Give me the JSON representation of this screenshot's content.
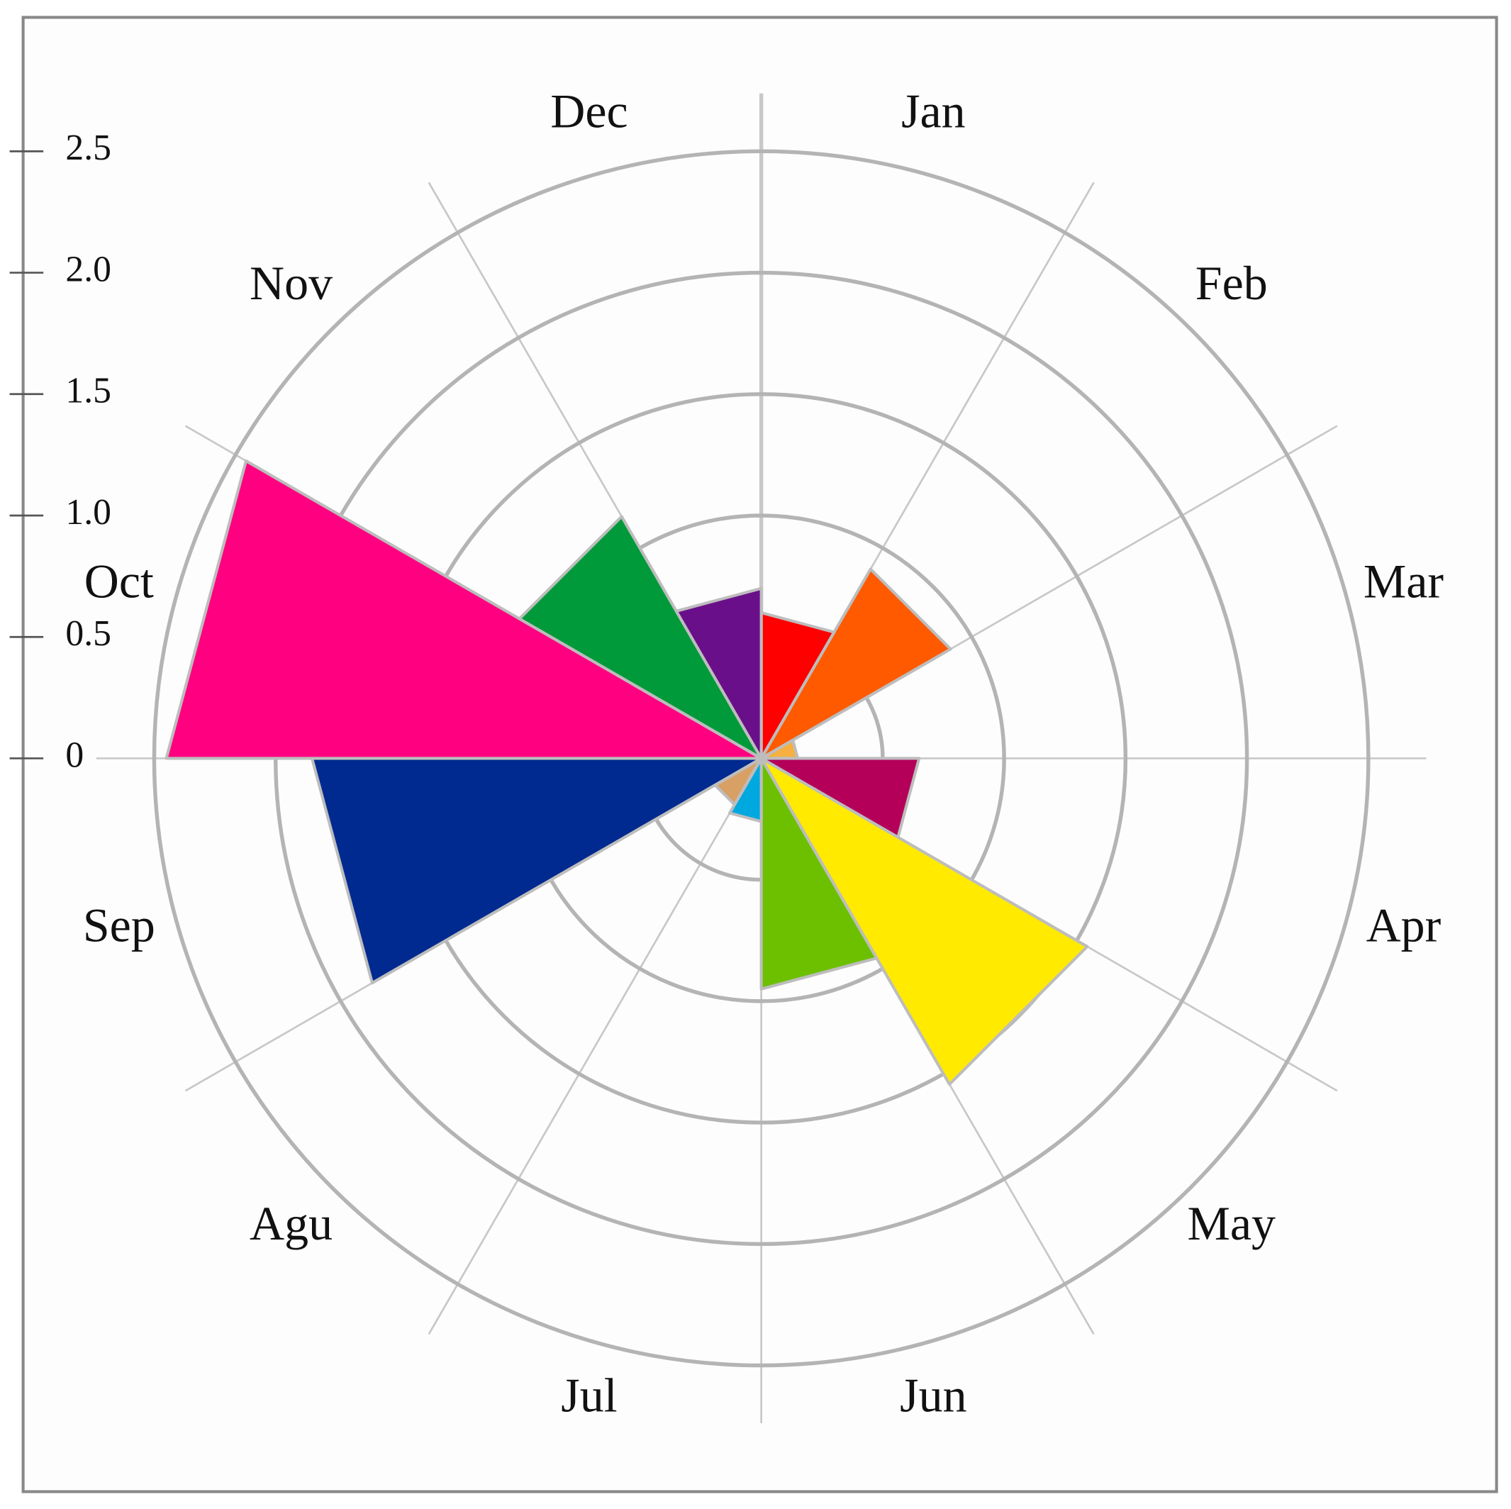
{
  "chart_data": {
    "type": "polar-bar",
    "categories": [
      "Jan",
      "Feb",
      "Mar",
      "Apr",
      "May",
      "Jun",
      "Jul",
      "Agu",
      "Sep",
      "Oct",
      "Nov",
      "Dec"
    ],
    "values": [
      0.6,
      0.9,
      0.15,
      0.65,
      1.55,
      0.95,
      0.26,
      0.22,
      1.85,
      2.45,
      1.15,
      0.7
    ],
    "colors": [
      "#ff0000",
      "#ff5a00",
      "#f5b041",
      "#b5005a",
      "#ffea00",
      "#6cc000",
      "#00a8e0",
      "#d9a066",
      "#002a8f",
      "#ff0080",
      "#009a3a",
      "#6a0f8a"
    ],
    "rlim": [
      0,
      2.5
    ],
    "rticks": [
      0,
      0.5,
      {
        "value": 1.0,
        "label": "1.0"
      },
      1.5,
      {
        "value": 2.0,
        "label": "2.0"
      },
      2.5
    ],
    "grid": true
  }
}
